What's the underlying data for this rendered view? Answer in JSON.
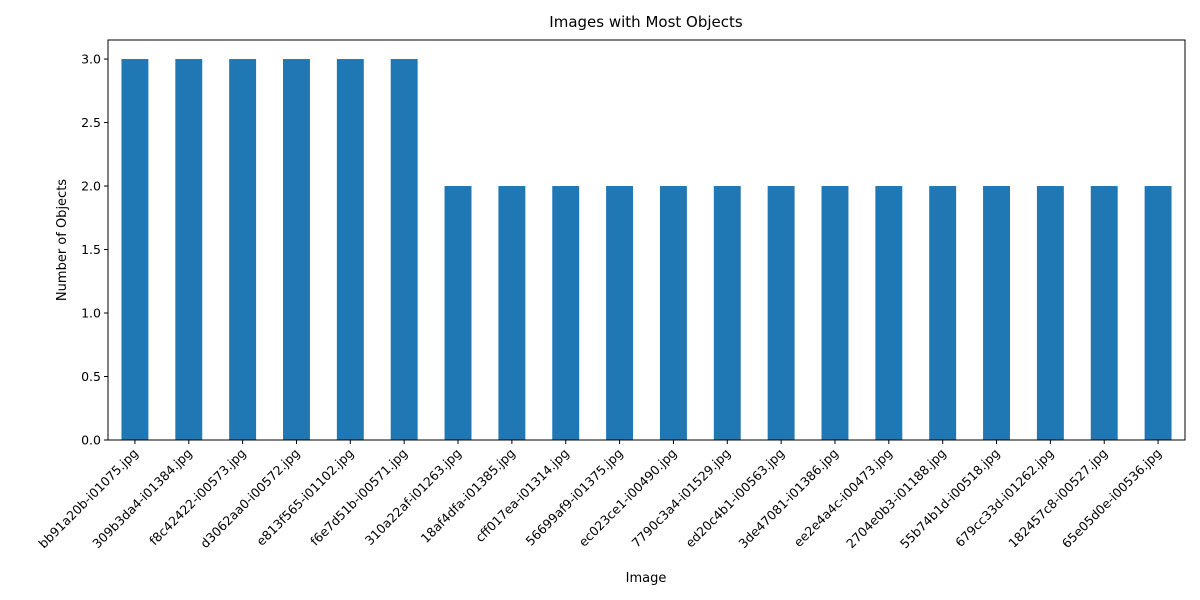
{
  "chart_data": {
    "type": "bar",
    "title": "Images with Most Objects",
    "xlabel": "Image",
    "ylabel": "Number of Objects",
    "categories": [
      "bb91a20b-i01075.jpg",
      "309b3da4-i01384.jpg",
      "f8c42422-i00573.jpg",
      "d3062aa0-i00572.jpg",
      "e813f565-i01102.jpg",
      "f6e7d51b-i00571.jpg",
      "310a22af-i01263.jpg",
      "18af4dfa-i01385.jpg",
      "cff017ea-i01314.jpg",
      "56699af9-i01375.jpg",
      "ec023ce1-i00490.jpg",
      "7790c3a4-i01529.jpg",
      "ed20c4b1-i00563.jpg",
      "3de47081-i01386.jpg",
      "ee2e4a4c-i00473.jpg",
      "2704e0b3-i01188.jpg",
      "55b74b1d-i00518.jpg",
      "679cc33d-i01262.jpg",
      "182457c8-i00527.jpg",
      "65e05d0e-i00536.jpg"
    ],
    "values": [
      3,
      3,
      3,
      3,
      3,
      3,
      2,
      2,
      2,
      2,
      2,
      2,
      2,
      2,
      2,
      2,
      2,
      2,
      2,
      2
    ],
    "ylim": [
      0,
      3.15
    ],
    "yticks": [
      "0.0",
      "0.5",
      "1.0",
      "1.5",
      "2.0",
      "2.5",
      "3.0"
    ],
    "bar_color": "#1f77b4",
    "grid": false,
    "legend": "none"
  }
}
